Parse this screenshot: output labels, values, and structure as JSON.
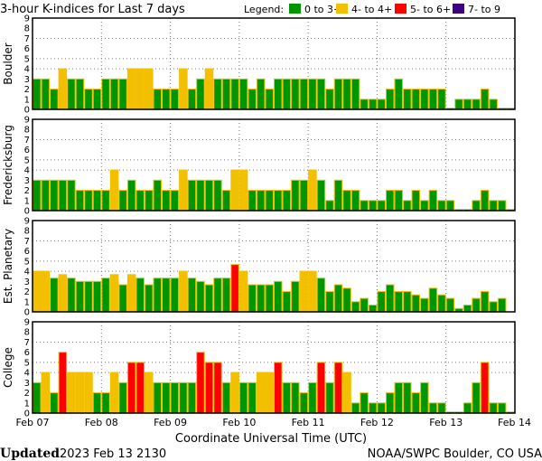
{
  "chart_data": {
    "type": "bar",
    "title": "3-hour K-indices for Last 7 days",
    "legend": {
      "label": "Legend:",
      "placement": "top-right",
      "entries": [
        {
          "label": "0 to 3+",
          "color": "#009600"
        },
        {
          "label": "4- to 4+",
          "color": "#f2c000"
        },
        {
          "label": "5- to 6+",
          "color": "#ff0000"
        },
        {
          "label": "7- to 9",
          "color": "#400080"
        }
      ]
    },
    "xlabel": "Coordinate Universal Time (UTC)",
    "x_ticks": [
      "Feb 07",
      "Feb 08",
      "Feb 09",
      "Feb 10",
      "Feb 11",
      "Feb 12",
      "Feb 13",
      "Feb 14"
    ],
    "bars_per_day": 8,
    "ylim": [
      0,
      9
    ],
    "y_ticks": [
      "0",
      "1",
      "2",
      "3",
      "4",
      "5",
      "6",
      "7",
      "8",
      "9"
    ],
    "grid_y": [
      4,
      5,
      7
    ],
    "series": [
      {
        "name": "Boulder",
        "values": [
          3,
          3,
          2,
          4,
          3,
          3,
          2,
          2,
          3,
          3,
          3,
          4,
          4,
          4,
          2,
          2,
          2,
          4,
          2,
          3,
          4,
          3,
          3,
          3,
          3,
          2,
          3,
          2,
          3,
          3,
          3,
          3,
          3,
          3,
          2,
          3,
          3,
          3,
          1,
          1,
          1,
          2,
          3,
          2,
          2,
          2,
          2,
          2,
          0,
          1,
          1,
          1,
          2,
          1,
          0,
          0
        ]
      },
      {
        "name": "Fredericksburg",
        "values": [
          3,
          3,
          3,
          3,
          3,
          2,
          2,
          2,
          2,
          4,
          2,
          3,
          2,
          2,
          3,
          2,
          2,
          4,
          3,
          3,
          3,
          3,
          2,
          4,
          4,
          2,
          2,
          2,
          2,
          2,
          3,
          3,
          4,
          3,
          1,
          3,
          2,
          2,
          1,
          1,
          1,
          2,
          2,
          1,
          2,
          1,
          2,
          1,
          1,
          0,
          0,
          1,
          2,
          1,
          1,
          0
        ]
      },
      {
        "name": "Est. Planetary",
        "values": [
          4,
          4,
          3.33,
          3.67,
          3.33,
          3,
          3,
          3,
          3.33,
          3.67,
          2.67,
          3.67,
          3.33,
          2.67,
          3.33,
          3.33,
          3.33,
          4,
          3.33,
          3,
          2.67,
          3.33,
          3.33,
          4.67,
          4,
          2.67,
          2.67,
          2.67,
          3,
          2,
          3,
          4,
          4,
          3.33,
          2,
          2.67,
          2.33,
          1,
          1.33,
          0.67,
          2,
          2.67,
          2,
          2,
          1.67,
          1.33,
          2.33,
          1.67,
          1.33,
          0.33,
          0.67,
          1.33,
          2,
          1,
          1.33,
          null
        ]
      },
      {
        "name": "College",
        "values": [
          3,
          4,
          2,
          6,
          4,
          4,
          4,
          2,
          2,
          4,
          3,
          5,
          5,
          4,
          3,
          3,
          3,
          3,
          3,
          6,
          5,
          5,
          3,
          4,
          3,
          3,
          4,
          4,
          5,
          3,
          3,
          2,
          3,
          5,
          3,
          5,
          4,
          1,
          2,
          1,
          1,
          2,
          3,
          3,
          2,
          3,
          1,
          1,
          0,
          0,
          1,
          3,
          5,
          1,
          1,
          0
        ]
      }
    ]
  },
  "footer": {
    "updated_label": "Updated",
    "updated_value": "2023 Feb 13 2130",
    "source": "NOAA/SWPC Boulder, CO USA"
  }
}
